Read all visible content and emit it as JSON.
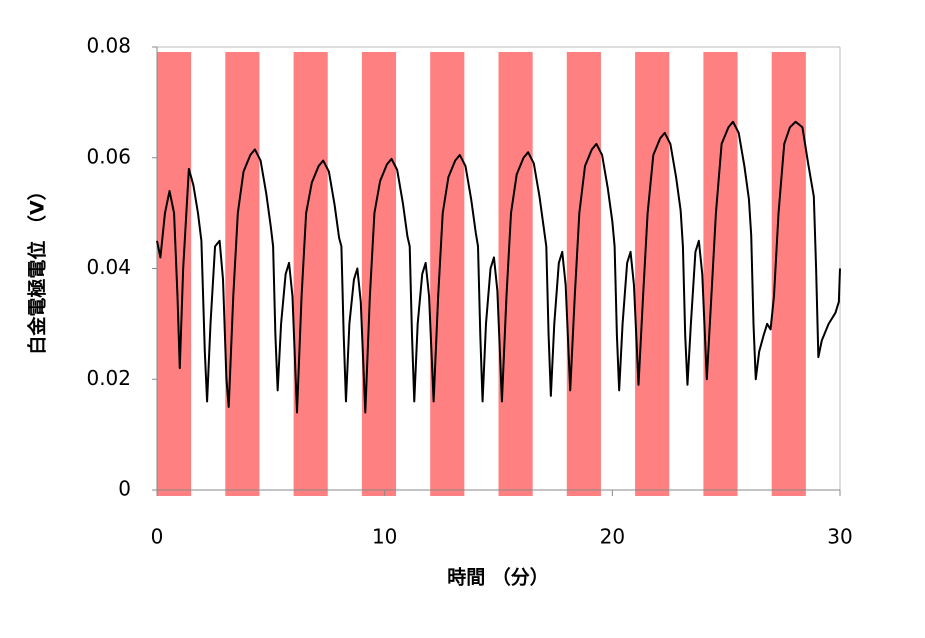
{
  "chart_data": {
    "type": "line",
    "xlabel": "時間 （分）",
    "ylabel": "白金電極電位 （V）",
    "color": "#000000",
    "span_color": "#ff8080",
    "xlim": [
      0,
      30
    ],
    "xticks": [
      0,
      10,
      20,
      30
    ],
    "ylim": [
      0,
      0.08
    ],
    "yticks": [
      0,
      0.02,
      0.04,
      0.06,
      0.08
    ],
    "shaded_spans": [
      [
        0,
        1.5
      ],
      [
        3,
        4.5
      ],
      [
        6,
        7.5
      ],
      [
        9,
        10.5
      ],
      [
        12,
        13.5
      ],
      [
        15,
        16.5
      ],
      [
        18,
        19.5
      ],
      [
        21,
        22.5
      ],
      [
        24,
        25.5
      ],
      [
        27,
        28.5
      ]
    ],
    "x": [
      0,
      0.15,
      0.35,
      0.55,
      0.75,
      0.9,
      1.0,
      1.15,
      1.4,
      1.6,
      1.8,
      1.95,
      2.1,
      2.2,
      2.35,
      2.55,
      2.75,
      2.9,
      3.05,
      3.15,
      3.35,
      3.55,
      3.8,
      4.1,
      4.3,
      4.55,
      4.8,
      5.0,
      5.1,
      5.2,
      5.3,
      5.45,
      5.65,
      5.8,
      5.95,
      6.15,
      6.35,
      6.55,
      6.8,
      7.1,
      7.3,
      7.55,
      7.8,
      8.0,
      8.1,
      8.2,
      8.3,
      8.45,
      8.65,
      8.8,
      8.95,
      9.15,
      9.35,
      9.55,
      9.8,
      10.1,
      10.3,
      10.55,
      10.8,
      11.0,
      11.1,
      11.2,
      11.3,
      11.45,
      11.65,
      11.8,
      11.95,
      12.15,
      12.35,
      12.55,
      12.8,
      13.1,
      13.3,
      13.55,
      13.8,
      14.0,
      14.1,
      14.2,
      14.3,
      14.45,
      14.65,
      14.8,
      14.95,
      15.15,
      15.35,
      15.55,
      15.8,
      16.1,
      16.3,
      16.55,
      16.8,
      17.0,
      17.1,
      17.2,
      17.3,
      17.45,
      17.65,
      17.8,
      17.95,
      18.15,
      18.35,
      18.55,
      18.8,
      19.1,
      19.3,
      19.55,
      19.8,
      20.0,
      20.1,
      20.2,
      20.3,
      20.45,
      20.65,
      20.8,
      20.95,
      21.15,
      21.35,
      21.55,
      21.8,
      22.1,
      22.3,
      22.55,
      22.8,
      23.0,
      23.1,
      23.2,
      23.3,
      23.45,
      23.65,
      23.8,
      23.95,
      24.15,
      24.35,
      24.55,
      24.8,
      25.1,
      25.3,
      25.55,
      25.8,
      26.0,
      26.1,
      26.2,
      26.3,
      26.45,
      26.65,
      26.8,
      26.95,
      27.1,
      27.3,
      27.55,
      27.8,
      28.05,
      28.35,
      28.6,
      28.85,
      28.95,
      29.05,
      29.2,
      29.5,
      29.8,
      29.95,
      30
    ],
    "values": [
      0.045,
      0.042,
      0.05,
      0.054,
      0.05,
      0.035,
      0.022,
      0.04,
      0.058,
      0.055,
      0.05,
      0.045,
      0.025,
      0.016,
      0.03,
      0.044,
      0.045,
      0.038,
      0.02,
      0.015,
      0.035,
      0.05,
      0.0575,
      0.0605,
      0.0615,
      0.0595,
      0.0535,
      0.0475,
      0.044,
      0.028,
      0.018,
      0.03,
      0.039,
      0.041,
      0.035,
      0.014,
      0.035,
      0.05,
      0.0555,
      0.0585,
      0.0595,
      0.0575,
      0.0515,
      0.0455,
      0.044,
      0.028,
      0.016,
      0.03,
      0.038,
      0.04,
      0.034,
      0.014,
      0.035,
      0.05,
      0.0558,
      0.0588,
      0.0598,
      0.0578,
      0.0518,
      0.0458,
      0.044,
      0.028,
      0.016,
      0.03,
      0.039,
      0.041,
      0.035,
      0.016,
      0.035,
      0.05,
      0.0565,
      0.0595,
      0.0605,
      0.0585,
      0.0525,
      0.0465,
      0.044,
      0.028,
      0.016,
      0.03,
      0.04,
      0.042,
      0.036,
      0.016,
      0.035,
      0.05,
      0.057,
      0.06,
      0.061,
      0.059,
      0.053,
      0.047,
      0.044,
      0.028,
      0.017,
      0.03,
      0.041,
      0.043,
      0.037,
      0.018,
      0.035,
      0.05,
      0.0585,
      0.0615,
      0.0625,
      0.0605,
      0.0545,
      0.0485,
      0.044,
      0.028,
      0.018,
      0.03,
      0.041,
      0.043,
      0.037,
      0.019,
      0.035,
      0.05,
      0.0605,
      0.0635,
      0.0645,
      0.0625,
      0.0565,
      0.0505,
      0.044,
      0.028,
      0.019,
      0.03,
      0.043,
      0.045,
      0.039,
      0.02,
      0.035,
      0.05,
      0.0625,
      0.0655,
      0.0665,
      0.0645,
      0.0585,
      0.0525,
      0.046,
      0.03,
      0.02,
      0.025,
      0.028,
      0.03,
      0.029,
      0.035,
      0.05,
      0.0625,
      0.0655,
      0.0665,
      0.0655,
      0.059,
      0.053,
      0.04,
      0.024,
      0.027,
      0.03,
      0.032,
      0.034,
      0.04
    ]
  }
}
